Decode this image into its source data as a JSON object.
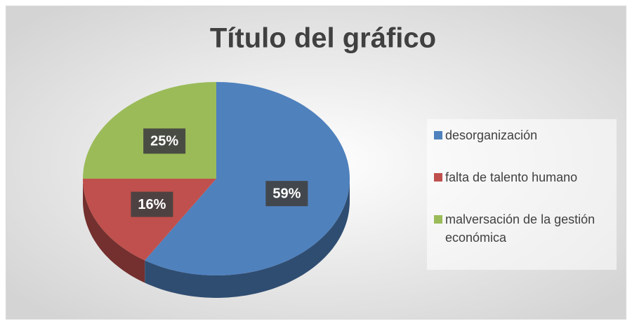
{
  "chart_data": {
    "type": "pie",
    "title": "Título del gráfico",
    "categories": [
      "desorganización",
      "falta de talento humano",
      "malversación de  la gestión económica"
    ],
    "values": [
      59,
      16,
      25
    ],
    "value_labels": [
      "59%",
      "16%",
      "25%"
    ],
    "colors": [
      "#4f81bd",
      "#c0504d",
      "#9bbb59"
    ],
    "legend": "right"
  }
}
